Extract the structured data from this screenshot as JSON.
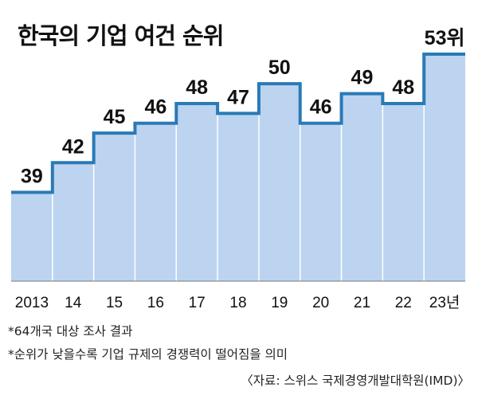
{
  "chart_data": {
    "type": "step-area",
    "title": "한국의 기업 여건 순위",
    "categories": [
      "2013",
      "14",
      "15",
      "16",
      "17",
      "18",
      "19",
      "20",
      "21",
      "22",
      "23년"
    ],
    "series": [
      {
        "values": [
          39,
          42,
          45,
          46,
          48,
          47,
          50,
          46,
          49,
          48,
          53
        ]
      }
    ],
    "data_labels": [
      "39",
      "42",
      "45",
      "46",
      "48",
      "47",
      "50",
      "46",
      "49",
      "48",
      "53위"
    ],
    "ylim": [
      30,
      53
    ],
    "grid": false,
    "colors": {
      "fill": "#bcd4f0",
      "line": "#2a7ab6",
      "divider": "#ffffff",
      "axis": "#777777"
    }
  },
  "notes": [
    "*64개국 대상 조사 결과",
    "*순위가 낮을수록 기업 규제의 경쟁력이 떨어짐을 의미"
  ],
  "source": "〈자료: 스위스 국제경영개발대학원(IMD)〉"
}
